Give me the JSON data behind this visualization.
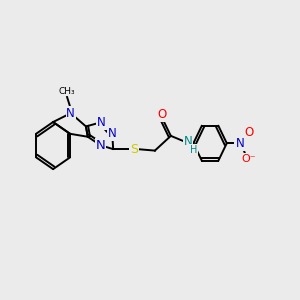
{
  "bg_color": "#ebebeb",
  "bond_color": "#000000",
  "bond_width": 1.4,
  "atom_colors": {
    "N_blue": "#0000cc",
    "N_tri": "#0000cc",
    "S": "#cccc00",
    "O": "#ff0000",
    "N_amide": "#008888",
    "N_no2": "#0000cc"
  },
  "xlim": [
    0,
    12
  ],
  "ylim": [
    0,
    10
  ]
}
